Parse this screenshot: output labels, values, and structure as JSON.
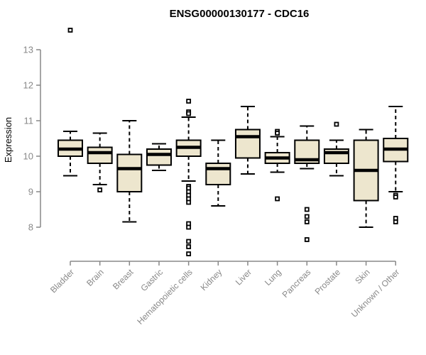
{
  "chart_data": {
    "type": "boxplot",
    "title": "ENSG00000130177 - CDC16",
    "ylabel": "Expression",
    "xlabel": "",
    "ylim": [
      8,
      13
    ],
    "yticks": [
      8,
      9,
      10,
      11,
      12,
      13
    ],
    "grid": false,
    "legend": "none",
    "colors": {
      "box_fill": "#EDE6CE",
      "box_border": "#000000",
      "median": "#000000",
      "whisker": "#000000",
      "axis": "#888888",
      "axis_text": "#888888",
      "title_text": "#000000"
    },
    "categories": [
      "Bladder",
      "Brain",
      "Breast",
      "Gastric",
      "Hematopoietic cells",
      "Kidney",
      "Liver",
      "Lung",
      "Pancreas",
      "Prostate",
      "Skin",
      "Unknown / Other"
    ],
    "series": [
      {
        "category": "Bladder",
        "whisker_low": 9.45,
        "q1": 10.0,
        "median": 10.2,
        "q3": 10.45,
        "whisker_high": 10.7,
        "outliers": [
          13.55
        ]
      },
      {
        "category": "Brain",
        "whisker_low": 9.2,
        "q1": 9.8,
        "median": 10.1,
        "q3": 10.25,
        "whisker_high": 10.65,
        "outliers": [
          9.05
        ]
      },
      {
        "category": "Breast",
        "whisker_low": 8.15,
        "q1": 9.0,
        "median": 9.65,
        "q3": 10.05,
        "whisker_high": 11.0,
        "outliers": []
      },
      {
        "category": "Gastric",
        "whisker_low": 9.6,
        "q1": 9.75,
        "median": 10.05,
        "q3": 10.2,
        "whisker_high": 10.35,
        "outliers": []
      },
      {
        "category": "Hematopoietic cells",
        "whisker_low": 9.3,
        "q1": 10.0,
        "median": 10.25,
        "q3": 10.45,
        "whisker_high": 11.1,
        "outliers": [
          11.55,
          11.25,
          11.2,
          9.15,
          9.1,
          9.0,
          8.9,
          8.8,
          8.7,
          8.1,
          8.0,
          7.6,
          7.45,
          7.25
        ]
      },
      {
        "category": "Kidney",
        "whisker_low": 8.6,
        "q1": 9.2,
        "median": 9.65,
        "q3": 9.8,
        "whisker_high": 10.45,
        "outliers": []
      },
      {
        "category": "Liver",
        "whisker_low": 9.5,
        "q1": 9.95,
        "median": 10.55,
        "q3": 10.75,
        "whisker_high": 11.4,
        "outliers": []
      },
      {
        "category": "Lung",
        "whisker_low": 9.55,
        "q1": 9.8,
        "median": 9.95,
        "q3": 10.1,
        "whisker_high": 10.55,
        "outliers": [
          10.7,
          10.65,
          8.8
        ]
      },
      {
        "category": "Pancreas",
        "whisker_low": 9.65,
        "q1": 9.8,
        "median": 9.9,
        "q3": 10.45,
        "whisker_high": 10.85,
        "outliers": [
          8.5,
          8.3,
          8.15,
          7.65
        ]
      },
      {
        "category": "Prostate",
        "whisker_low": 9.45,
        "q1": 9.8,
        "median": 10.1,
        "q3": 10.2,
        "whisker_high": 10.45,
        "outliers": [
          10.9
        ]
      },
      {
        "category": "Skin",
        "whisker_low": 8.0,
        "q1": 8.75,
        "median": 9.6,
        "q3": 10.45,
        "whisker_high": 10.75,
        "outliers": []
      },
      {
        "category": "Unknown / Other",
        "whisker_low": 9.0,
        "q1": 9.85,
        "median": 10.2,
        "q3": 10.5,
        "whisker_high": 11.4,
        "outliers": [
          8.9,
          8.85,
          8.25,
          8.15
        ]
      }
    ]
  }
}
